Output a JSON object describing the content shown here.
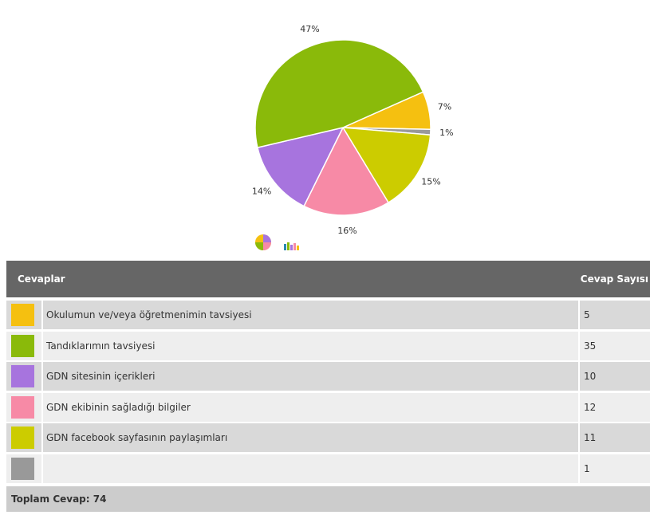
{
  "chart_data": {
    "type": "pie",
    "values": [
      7,
      1,
      15,
      16,
      14,
      47
    ],
    "value_labels": [
      "7%",
      "1%",
      "15%",
      "16%",
      "14%",
      "47%"
    ],
    "colors": [
      "#f5c010",
      "#999999",
      "#cccc00",
      "#f78aa6",
      "#a774de",
      "#8aba0a"
    ]
  },
  "table": {
    "headers": [
      "Cevaplar",
      "Cevap Sayısı"
    ],
    "rows": [
      {
        "color": "#f5c010",
        "answer": "Okulumun ve/veya öğretmenimin tavsiyesi",
        "count": "5"
      },
      {
        "color": "#8aba0a",
        "answer": "Tandıklarımın tavsiyesi",
        "count": "35"
      },
      {
        "color": "#a774de",
        "answer": "GDN sitesinin içerikleri",
        "count": "10"
      },
      {
        "color": "#f78aa6",
        "answer": "GDN ekibinin sağladığı bilgiler",
        "count": "12"
      },
      {
        "color": "#cccc00",
        "answer": "GDN facebook sayfasının paylaşımları",
        "count": "11"
      },
      {
        "color": "#999999",
        "answer": null,
        "count": "1"
      }
    ],
    "total": "Toplam Cevap: 74"
  }
}
